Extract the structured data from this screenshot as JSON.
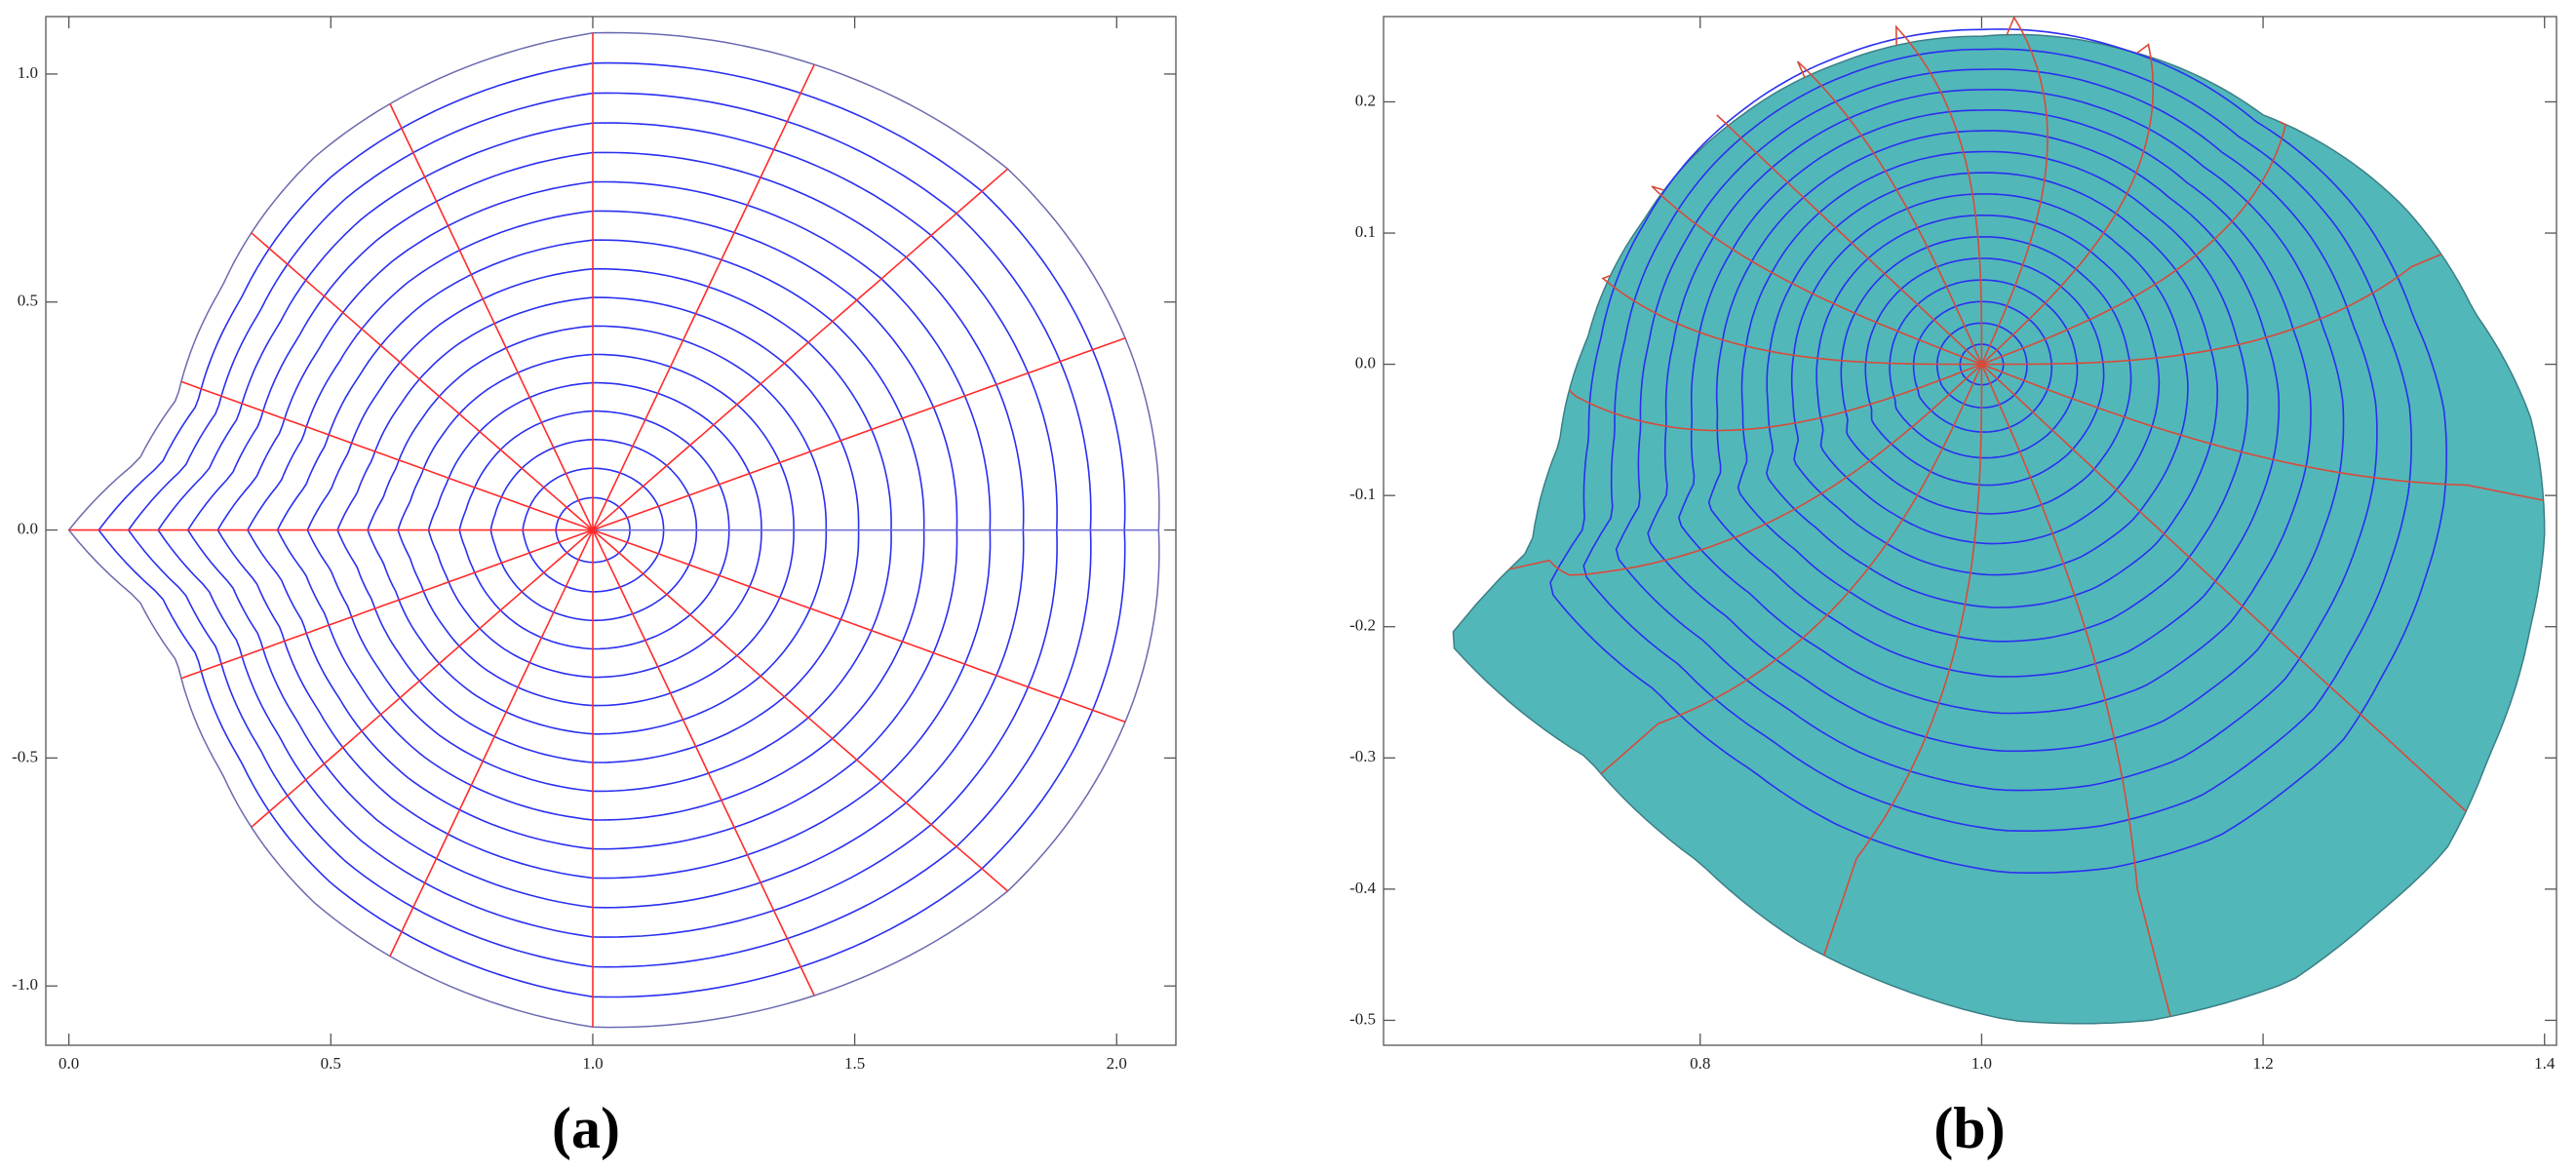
{
  "panels": [
    {
      "label": "(a)",
      "xlim": [
        -0.044,
        2.113
      ],
      "ylim": [
        -1.13,
        1.126
      ],
      "xticks": [
        {
          "value": 0,
          "label": "0.0"
        },
        {
          "value": 0.5,
          "label": "0.5"
        },
        {
          "value": 1,
          "label": "1.0"
        },
        {
          "value": 1.5,
          "label": "1.5"
        },
        {
          "value": 2,
          "label": "2.0"
        }
      ],
      "yticks": [
        {
          "value": -1,
          "label": "-1.0"
        },
        {
          "value": -0.5,
          "label": "-0.5"
        },
        {
          "value": 0,
          "label": "0.0"
        },
        {
          "value": 0.5,
          "label": "0.5"
        },
        {
          "value": 1,
          "label": "1.0"
        }
      ]
    },
    {
      "label": "(b)",
      "xlim": [
        0.575,
        1.4085
      ],
      "ylim": [
        -0.519,
        0.265
      ],
      "xticks": [
        {
          "value": 0.8,
          "label": "0.8"
        },
        {
          "value": 1,
          "label": "1.0"
        },
        {
          "value": 1.2,
          "label": "1.2"
        },
        {
          "value": 1.4,
          "label": "1.4"
        }
      ],
      "yticks": [
        {
          "value": -0.5,
          "label": "-0.5"
        },
        {
          "value": -0.4,
          "label": "-0.4"
        },
        {
          "value": -0.3,
          "label": "-0.3"
        },
        {
          "value": -0.2,
          "label": "-0.2"
        },
        {
          "value": -0.1,
          "label": "-0.1"
        },
        {
          "value": 0,
          "label": "0.0"
        },
        {
          "value": 0.1,
          "label": "0.1"
        },
        {
          "value": 0.2,
          "label": "0.2"
        }
      ]
    }
  ]
}
